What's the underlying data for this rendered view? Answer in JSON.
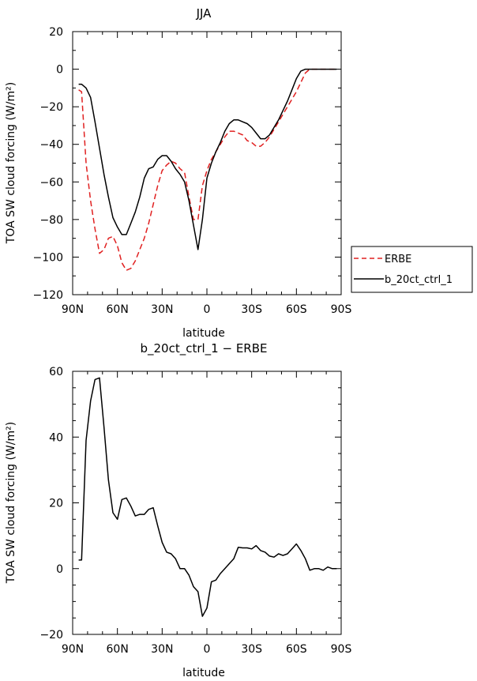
{
  "chart_data": [
    {
      "type": "line",
      "title": "JJA",
      "xlabel": "latitude",
      "ylabel": "TOA SW cloud forcing (W/m²)",
      "x_direction": "north-to-south",
      "xlim": [
        90,
        -90
      ],
      "ylim": [
        -120,
        20
      ],
      "x_ticks": [
        90,
        60,
        30,
        0,
        -30,
        -60,
        -90
      ],
      "x_tick_labels": [
        "90N",
        "60N",
        "30N",
        "0",
        "30S",
        "60S",
        "90S"
      ],
      "y_ticks": [
        20,
        0,
        -20,
        -40,
        -60,
        -80,
        -100,
        -120
      ],
      "y_tick_labels": [
        "20",
        "0",
        "−20",
        "−40",
        "−60",
        "−80",
        "−100",
        "−120"
      ],
      "legend": "right",
      "series": [
        {
          "name": "ERBE",
          "color": "#e02020",
          "dash": "dashed",
          "x": [
            86,
            84,
            81,
            78,
            75,
            72,
            69,
            66,
            63,
            60,
            57,
            54,
            51,
            48,
            45,
            42,
            39,
            36,
            33,
            30,
            27,
            24,
            21,
            18,
            15,
            12,
            9,
            6,
            3,
            0,
            -3,
            -6,
            -9,
            -12,
            -15,
            -18,
            -21,
            -24,
            -27,
            -30,
            -33,
            -36,
            -39,
            -42,
            -45,
            -48,
            -51,
            -54,
            -57,
            -60,
            -63,
            -66,
            -69,
            -72,
            -75,
            -78,
            -81,
            -84,
            -87
          ],
          "y": [
            -11,
            -12,
            -50,
            -70,
            -85,
            -98,
            -96,
            -90,
            -89,
            -94,
            -103,
            -107,
            -106,
            -102,
            -96,
            -90,
            -82,
            -72,
            -62,
            -54,
            -51,
            -49,
            -50,
            -53,
            -55,
            -68,
            -80,
            -80,
            -62,
            -54,
            -48,
            -44,
            -40,
            -36,
            -33,
            -33,
            -34,
            -35,
            -38,
            -39,
            -41,
            -41,
            -39,
            -36,
            -32,
            -28,
            -24,
            -20,
            -16,
            -12,
            -7,
            -2,
            0,
            0,
            0,
            0,
            0,
            0,
            0
          ]
        },
        {
          "name": "b_20ct_ctrl_1",
          "color": "#000000",
          "dash": "solid",
          "x": [
            86,
            84,
            81,
            78,
            75,
            72,
            69,
            66,
            63,
            60,
            57,
            54,
            51,
            48,
            45,
            42,
            39,
            36,
            33,
            30,
            27,
            24,
            21,
            18,
            15,
            12,
            9,
            6,
            3,
            0,
            -3,
            -6,
            -9,
            -12,
            -15,
            -18,
            -21,
            -24,
            -27,
            -30,
            -33,
            -36,
            -39,
            -42,
            -45,
            -48,
            -51,
            -54,
            -57,
            -60,
            -63,
            -66,
            -69,
            -72,
            -75,
            -78,
            -81,
            -84,
            -87
          ],
          "y": [
            -8,
            -8,
            -10,
            -15,
            -28,
            -42,
            -56,
            -68,
            -79,
            -84,
            -88,
            -88,
            -82,
            -76,
            -68,
            -58,
            -53,
            -52,
            -48,
            -46,
            -46,
            -49,
            -53,
            -56,
            -60,
            -70,
            -83,
            -96,
            -80,
            -58,
            -50,
            -44,
            -39,
            -33,
            -29,
            -27,
            -27,
            -28,
            -29,
            -31,
            -34,
            -37,
            -37,
            -35,
            -31,
            -27,
            -22,
            -17,
            -11,
            -5,
            -1,
            0,
            0,
            0,
            0,
            0,
            0,
            0,
            0
          ]
        }
      ]
    },
    {
      "type": "line",
      "title": "b_20ct_ctrl_1 − ERBE",
      "xlabel": "latitude",
      "ylabel": "TOA SW cloud forcing (W/m²)",
      "x_direction": "north-to-south",
      "xlim": [
        90,
        -90
      ],
      "ylim": [
        -20,
        60
      ],
      "x_ticks": [
        90,
        60,
        30,
        0,
        -30,
        -60,
        -90
      ],
      "x_tick_labels": [
        "90N",
        "60N",
        "30N",
        "0",
        "30S",
        "60S",
        "90S"
      ],
      "y_ticks": [
        60,
        40,
        20,
        0,
        -20
      ],
      "y_tick_labels": [
        "60",
        "40",
        "20",
        "0",
        "−20"
      ],
      "series": [
        {
          "color": "#000000",
          "dash": "solid",
          "x": [
            86,
            84,
            81,
            78,
            75,
            72,
            69,
            66,
            63,
            60,
            57,
            54,
            51,
            48,
            45,
            42,
            39,
            36,
            33,
            30,
            27,
            24,
            21,
            18,
            15,
            12,
            9,
            6,
            3,
            0,
            -3,
            -6,
            -9,
            -12,
            -15,
            -18,
            -21,
            -24,
            -27,
            -30,
            -33,
            -36,
            -39,
            -42,
            -45,
            -48,
            -51,
            -54,
            -57,
            -60,
            -63,
            -66,
            -69,
            -72,
            -75,
            -78,
            -81,
            -84,
            -87
          ],
          "y": [
            2.6,
            2.6,
            39,
            51,
            57.5,
            58,
            43,
            27,
            17,
            15,
            21,
            21.5,
            19,
            16,
            16.5,
            16.5,
            18,
            18.5,
            13,
            8,
            5,
            4.5,
            3,
            0,
            0,
            -2,
            -5.5,
            -7,
            -14.5,
            -12,
            -4,
            -3.5,
            -1.5,
            0,
            1.5,
            3,
            6.5,
            6.3,
            6.3,
            6,
            7,
            5.5,
            5,
            3.8,
            3.5,
            4.5,
            4,
            4.5,
            6,
            7.5,
            5.5,
            3,
            -0.5,
            0,
            0,
            -0.5,
            0.5,
            0,
            0
          ]
        }
      ]
    }
  ]
}
